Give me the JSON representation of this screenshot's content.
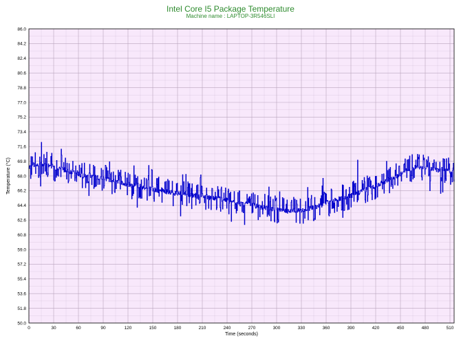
{
  "chart_data": {
    "type": "line",
    "title": "Intel Core I5 Package Temperature",
    "subtitle": "Machine name : LAPTOP-3R546SLI",
    "xlabel": "Time (seconds)",
    "ylabel": "Temperature (°C)",
    "xlim": [
      0,
      515
    ],
    "ylim": [
      50,
      86
    ],
    "x_ticks": [
      "0",
      "30",
      "60",
      "90",
      "120",
      "150",
      "180",
      "210",
      "240",
      "270",
      "300",
      "330",
      "360",
      "390",
      "420",
      "450",
      "480",
      "510"
    ],
    "y_ticks": [
      "86.0",
      "84.2",
      "82.4",
      "80.6",
      "78.8",
      "77.0",
      "75.2",
      "73.4",
      "71.6",
      "69.8",
      "68.0",
      "66.2",
      "64.4",
      "62.6",
      "60.8",
      "59.0",
      "57.2",
      "55.4",
      "53.6",
      "51.8",
      "50.0"
    ],
    "grid": true,
    "plot_background": "#f8e8fb",
    "grid_color": "#b9a3be",
    "line_color": "#0000cc",
    "series": [
      {
        "points": [
          [
            0,
            69.0
          ],
          [
            5,
            69.4
          ],
          [
            10,
            69.2
          ],
          [
            15,
            69.5
          ],
          [
            20,
            69.3
          ],
          [
            25,
            69.4
          ],
          [
            30,
            69.0
          ],
          [
            35,
            68.8
          ],
          [
            40,
            68.9
          ],
          [
            45,
            68.6
          ],
          [
            50,
            68.5
          ],
          [
            55,
            68.6
          ],
          [
            60,
            68.3
          ],
          [
            65,
            68.0
          ],
          [
            70,
            68.2
          ],
          [
            75,
            68.0
          ],
          [
            80,
            67.9
          ],
          [
            85,
            67.7
          ],
          [
            90,
            67.8
          ],
          [
            95,
            67.6
          ],
          [
            100,
            67.4
          ],
          [
            105,
            67.3
          ],
          [
            110,
            67.2
          ],
          [
            115,
            67.0
          ],
          [
            120,
            67.0
          ],
          [
            125,
            66.8
          ],
          [
            130,
            66.9
          ],
          [
            135,
            66.7
          ],
          [
            140,
            66.6
          ],
          [
            145,
            66.7
          ],
          [
            150,
            66.4
          ],
          [
            155,
            66.2
          ],
          [
            160,
            66.3
          ],
          [
            165,
            66.0
          ],
          [
            170,
            66.1
          ],
          [
            175,
            65.9
          ],
          [
            180,
            65.9
          ],
          [
            185,
            65.8
          ],
          [
            190,
            65.9
          ],
          [
            195,
            65.6
          ],
          [
            200,
            65.7
          ],
          [
            205,
            65.4
          ],
          [
            210,
            65.6
          ],
          [
            215,
            65.5
          ],
          [
            220,
            65.3
          ],
          [
            225,
            65.2
          ],
          [
            230,
            65.3
          ],
          [
            235,
            65.1
          ],
          [
            240,
            65.0
          ],
          [
            245,
            64.8
          ],
          [
            250,
            64.8
          ],
          [
            255,
            64.6
          ],
          [
            260,
            64.6
          ],
          [
            265,
            64.5
          ],
          [
            270,
            64.4
          ],
          [
            275,
            64.3
          ],
          [
            280,
            64.2
          ],
          [
            285,
            64.1
          ],
          [
            290,
            64.1
          ],
          [
            295,
            63.9
          ],
          [
            300,
            63.9
          ],
          [
            305,
            63.8
          ],
          [
            310,
            63.8
          ],
          [
            315,
            63.6
          ],
          [
            320,
            63.8
          ],
          [
            325,
            63.7
          ],
          [
            330,
            63.8
          ],
          [
            335,
            63.9
          ],
          [
            340,
            64.0
          ],
          [
            345,
            64.2
          ],
          [
            350,
            64.3
          ],
          [
            355,
            64.5
          ],
          [
            360,
            64.7
          ],
          [
            365,
            64.8
          ],
          [
            370,
            65.0
          ],
          [
            375,
            65.2
          ],
          [
            380,
            65.3
          ],
          [
            385,
            65.5
          ],
          [
            390,
            65.6
          ],
          [
            395,
            65.8
          ],
          [
            400,
            66.0
          ],
          [
            405,
            66.2
          ],
          [
            410,
            66.4
          ],
          [
            415,
            66.6
          ],
          [
            420,
            66.8
          ],
          [
            425,
            67.0
          ],
          [
            430,
            67.3
          ],
          [
            435,
            67.5
          ],
          [
            440,
            67.8
          ],
          [
            445,
            68.0
          ],
          [
            450,
            68.3
          ],
          [
            455,
            68.5
          ],
          [
            460,
            68.8
          ],
          [
            465,
            69.0
          ],
          [
            470,
            69.1
          ],
          [
            475,
            69.0
          ],
          [
            480,
            69.1
          ],
          [
            485,
            68.9
          ],
          [
            490,
            68.8
          ],
          [
            495,
            68.7
          ],
          [
            500,
            68.8
          ],
          [
            505,
            68.6
          ],
          [
            510,
            68.6
          ],
          [
            515,
            68.7
          ]
        ],
        "noise_amplitude": 1.2
      }
    ]
  }
}
